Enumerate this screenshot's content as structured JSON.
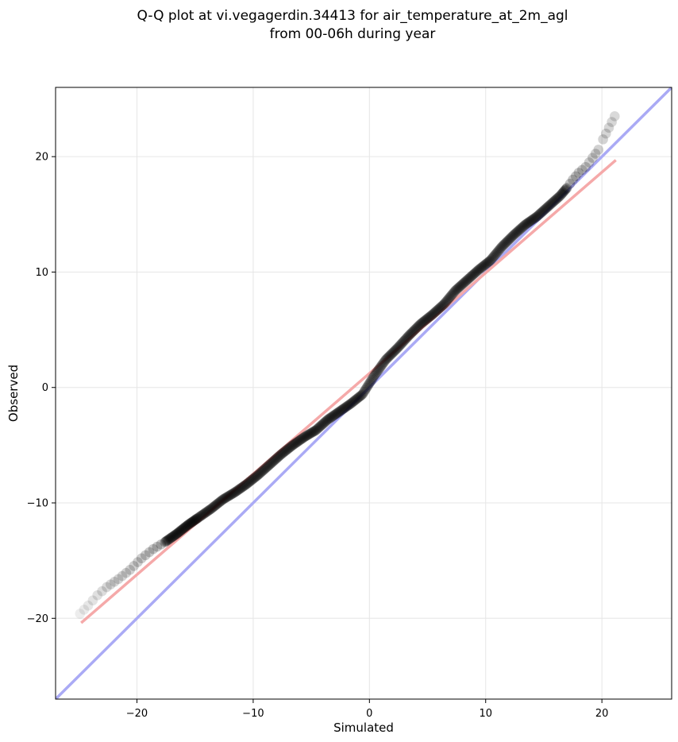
{
  "chart_data": {
    "type": "scatter",
    "title_lines": [
      "Q-Q plot at vi.vegagerdin.34413 for air_temperature_at_2m_agl",
      "from 00-06h during year"
    ],
    "xlabel": "Simulated",
    "ylabel": "Observed",
    "xlim": [
      -27,
      26
    ],
    "ylim": [
      -27,
      26
    ],
    "xticks": [
      -20,
      -10,
      0,
      10,
      20
    ],
    "yticks": [
      -20,
      -10,
      0,
      10,
      20
    ],
    "xtick_labels": [
      "−20",
      "−10",
      "0",
      "10",
      "20"
    ],
    "ytick_labels": [
      "−20",
      "−10",
      "0",
      "10",
      "20"
    ],
    "grid": true,
    "identity_line": {
      "color": "#aaaaf5",
      "from": [
        -27,
        -27
      ],
      "to": [
        26,
        26
      ]
    },
    "fit_line": {
      "color": "#f5a9a9",
      "from": [
        -24.8,
        -20.4
      ],
      "to": [
        21.2,
        19.7
      ]
    },
    "marker_color": "#000000",
    "quantile_curve": {
      "x": [
        -24.9,
        -24.2,
        -23.4,
        -22.6,
        -21.6,
        -20.6,
        -19.6,
        -18.6,
        -17.6,
        -16.6,
        -15.6,
        -14.6,
        -13.6,
        -12.6,
        -11.6,
        -10.6,
        -9.6,
        -8.6,
        -7.6,
        -6.6,
        -5.6,
        -4.6,
        -3.6,
        -2.6,
        -1.6,
        -0.6,
        0.4,
        1.4,
        2.4,
        3.4,
        4.4,
        5.4,
        6.4,
        7.4,
        8.4,
        9.4,
        10.4,
        11.4,
        12.4,
        13.4,
        14.4,
        15.4,
        16.4,
        17.0,
        17.5,
        18.0,
        18.6,
        19.2,
        19.7,
        20.1,
        20.6,
        21.1
      ],
      "y": [
        -19.6,
        -18.9,
        -18.0,
        -17.3,
        -16.6,
        -15.8,
        -14.8,
        -14.0,
        -13.4,
        -12.7,
        -11.9,
        -11.2,
        -10.5,
        -9.7,
        -9.1,
        -8.4,
        -7.6,
        -6.7,
        -5.8,
        -5.0,
        -4.3,
        -3.7,
        -2.8,
        -2.1,
        -1.4,
        -0.6,
        1.0,
        2.4,
        3.4,
        4.5,
        5.5,
        6.3,
        7.2,
        8.4,
        9.3,
        10.2,
        11.0,
        12.2,
        13.2,
        14.1,
        14.8,
        15.7,
        16.6,
        17.3,
        18.0,
        18.6,
        19.1,
        19.9,
        20.6,
        21.5,
        22.5,
        23.5
      ]
    }
  }
}
